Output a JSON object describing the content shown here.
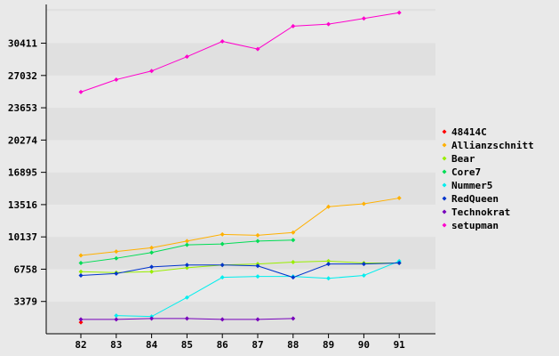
{
  "chart_data": {
    "type": "line",
    "title": "",
    "xlabel": "",
    "ylabel": "",
    "x": [
      82,
      83,
      84,
      85,
      86,
      87,
      88,
      89,
      90,
      91
    ],
    "x_tick_labels": [
      "82",
      "83",
      "84",
      "85",
      "86",
      "87",
      "88",
      "89",
      "90",
      "91"
    ],
    "y_ticks": [
      3379,
      6758,
      10137,
      13516,
      16895,
      20274,
      23653,
      27032,
      30411
    ],
    "y_tick_labels": [
      "3379",
      "6758",
      "10137",
      "13516",
      "16895",
      "20274",
      "23653",
      "27032",
      "30411"
    ],
    "ylim": [
      0,
      34000
    ],
    "grid": "horizontal alternating bands",
    "legend_position": "right",
    "series": [
      {
        "name": "48414C",
        "color": "#ff0000",
        "values": [
          1200,
          null,
          null,
          null,
          null,
          null,
          null,
          null,
          null,
          null
        ]
      },
      {
        "name": "Allianzschnitt",
        "color": "#ffb000",
        "values": [
          8200,
          8600,
          9000,
          9700,
          10400,
          10300,
          10600,
          13300,
          13600,
          14200
        ]
      },
      {
        "name": "Bear",
        "color": "#99ee00",
        "values": [
          6500,
          6400,
          6500,
          6900,
          7200,
          7300,
          7500,
          7600,
          7400,
          7400
        ]
      },
      {
        "name": "Core7",
        "color": "#00dd55",
        "values": [
          7400,
          7900,
          8500,
          9300,
          9400,
          9700,
          9800,
          null,
          null,
          null
        ]
      },
      {
        "name": "Nummer5",
        "color": "#00eeee",
        "values": [
          null,
          1900,
          1800,
          3800,
          5900,
          6000,
          6000,
          5800,
          6100,
          7600
        ]
      },
      {
        "name": "RedQueen",
        "color": "#0033cc",
        "values": [
          6100,
          6300,
          7000,
          7200,
          7200,
          7100,
          5900,
          7300,
          7300,
          7400
        ]
      },
      {
        "name": "Technokrat",
        "color": "#7700bb",
        "values": [
          1500,
          1500,
          1600,
          1600,
          1500,
          1500,
          1600,
          null,
          null,
          null
        ]
      },
      {
        "name": "setupman",
        "color": "#ff00cc",
        "values": [
          25300,
          26600,
          27500,
          29000,
          30600,
          29800,
          32200,
          32400,
          33000,
          33600
        ]
      }
    ]
  }
}
